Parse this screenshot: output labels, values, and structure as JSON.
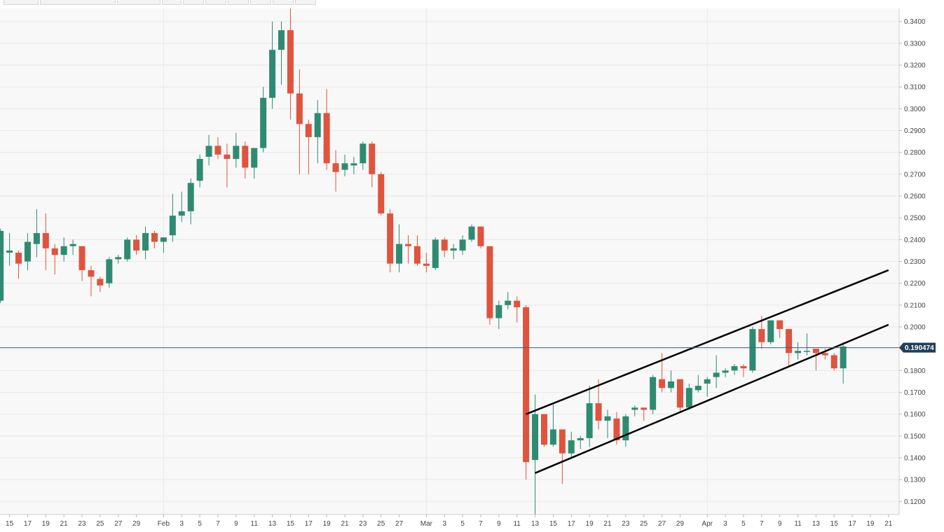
{
  "toolbar": {
    "buttons": [
      "time-range-button",
      "chart-type-button",
      "indicators-button",
      "draw-tool-button",
      "zoom-in-button",
      "zoom-out-button",
      "reset-button",
      "settings-button",
      "screenshot-button",
      "fullscreen-button"
    ]
  },
  "colors": {
    "up": "#2e8b72",
    "down": "#e0533d",
    "grid": "#e9e9e9",
    "price_line": "#41617f",
    "price_tag_bg": "#1f3f5b",
    "trend_line": "#000000"
  },
  "chart_data": {
    "type": "candlestick",
    "title": "",
    "xlabel": "",
    "ylabel": "",
    "ylim": [
      0.114,
      0.346
    ],
    "grid": true,
    "y_ticks": [
      "0.1200",
      "0.1300",
      "0.1400",
      "0.1500",
      "0.1600",
      "0.1700",
      "0.1800",
      "0.1900",
      "0.2000",
      "0.2100",
      "0.2200",
      "0.2300",
      "0.2400",
      "0.2500",
      "0.2600",
      "0.2700",
      "0.2800",
      "0.2900",
      "0.3000",
      "0.3100",
      "0.3200",
      "0.3300",
      "0.3400"
    ],
    "x_ticks": [
      {
        "day": 0,
        "label": "15"
      },
      {
        "day": 2,
        "label": "17"
      },
      {
        "day": 4,
        "label": "19"
      },
      {
        "day": 6,
        "label": "21"
      },
      {
        "day": 8,
        "label": "23"
      },
      {
        "day": 10,
        "label": "25"
      },
      {
        "day": 12,
        "label": "27"
      },
      {
        "day": 14,
        "label": "29"
      },
      {
        "day": 17,
        "label": "Feb"
      },
      {
        "day": 19,
        "label": "3"
      },
      {
        "day": 21,
        "label": "5"
      },
      {
        "day": 23,
        "label": "7"
      },
      {
        "day": 25,
        "label": "9"
      },
      {
        "day": 27,
        "label": "11"
      },
      {
        "day": 29,
        "label": "13"
      },
      {
        "day": 31,
        "label": "15"
      },
      {
        "day": 33,
        "label": "17"
      },
      {
        "day": 35,
        "label": "19"
      },
      {
        "day": 37,
        "label": "21"
      },
      {
        "day": 39,
        "label": "23"
      },
      {
        "day": 41,
        "label": "25"
      },
      {
        "day": 43,
        "label": "27"
      },
      {
        "day": 46,
        "label": "Mar"
      },
      {
        "day": 48,
        "label": "3"
      },
      {
        "day": 50,
        "label": "5"
      },
      {
        "day": 52,
        "label": "7"
      },
      {
        "day": 54,
        "label": "9"
      },
      {
        "day": 56,
        "label": "11"
      },
      {
        "day": 58,
        "label": "13"
      },
      {
        "day": 60,
        "label": "15"
      },
      {
        "day": 62,
        "label": "17"
      },
      {
        "day": 64,
        "label": "19"
      },
      {
        "day": 66,
        "label": "21"
      },
      {
        "day": 68,
        "label": "23"
      },
      {
        "day": 70,
        "label": "25"
      },
      {
        "day": 72,
        "label": "27"
      },
      {
        "day": 74,
        "label": "29"
      },
      {
        "day": 77,
        "label": "Apr"
      },
      {
        "day": 79,
        "label": "3"
      },
      {
        "day": 81,
        "label": "5"
      },
      {
        "day": 83,
        "label": "7"
      },
      {
        "day": 85,
        "label": "9"
      },
      {
        "day": 87,
        "label": "11"
      },
      {
        "day": 89,
        "label": "13"
      },
      {
        "day": 91,
        "label": "15"
      },
      {
        "day": 93,
        "label": "17"
      },
      {
        "day": 95,
        "label": "19"
      },
      {
        "day": 97,
        "label": "21"
      }
    ],
    "vertical_gridlines_at_days": [
      17,
      46,
      77
    ],
    "current_price": 0.190474,
    "current_price_label": "0.190474",
    "candles": [
      {
        "d": -1,
        "o": 0.212,
        "h": 0.245,
        "l": 0.211,
        "c": 0.244
      },
      {
        "d": 0,
        "o": 0.234,
        "h": 0.243,
        "l": 0.228,
        "c": 0.235
      },
      {
        "d": 1,
        "o": 0.234,
        "h": 0.235,
        "l": 0.222,
        "c": 0.229
      },
      {
        "d": 2,
        "o": 0.23,
        "h": 0.243,
        "l": 0.226,
        "c": 0.239
      },
      {
        "d": 3,
        "o": 0.238,
        "h": 0.254,
        "l": 0.232,
        "c": 0.243
      },
      {
        "d": 4,
        "o": 0.243,
        "h": 0.252,
        "l": 0.226,
        "c": 0.236
      },
      {
        "d": 5,
        "o": 0.236,
        "h": 0.238,
        "l": 0.224,
        "c": 0.233
      },
      {
        "d": 6,
        "o": 0.233,
        "h": 0.241,
        "l": 0.23,
        "c": 0.237
      },
      {
        "d": 7,
        "o": 0.237,
        "h": 0.24,
        "l": 0.233,
        "c": 0.238
      },
      {
        "d": 8,
        "o": 0.237,
        "h": 0.237,
        "l": 0.221,
        "c": 0.226
      },
      {
        "d": 9,
        "o": 0.226,
        "h": 0.228,
        "l": 0.214,
        "c": 0.223
      },
      {
        "d": 10,
        "o": 0.222,
        "h": 0.223,
        "l": 0.216,
        "c": 0.219
      },
      {
        "d": 11,
        "o": 0.22,
        "h": 0.232,
        "l": 0.218,
        "c": 0.231
      },
      {
        "d": 12,
        "o": 0.231,
        "h": 0.233,
        "l": 0.229,
        "c": 0.232
      },
      {
        "d": 13,
        "o": 0.231,
        "h": 0.241,
        "l": 0.23,
        "c": 0.24
      },
      {
        "d": 14,
        "o": 0.24,
        "h": 0.242,
        "l": 0.233,
        "c": 0.235
      },
      {
        "d": 15,
        "o": 0.235,
        "h": 0.246,
        "l": 0.231,
        "c": 0.243
      },
      {
        "d": 16,
        "o": 0.243,
        "h": 0.244,
        "l": 0.236,
        "c": 0.239
      },
      {
        "d": 17,
        "o": 0.239,
        "h": 0.241,
        "l": 0.234,
        "c": 0.241
      },
      {
        "d": 18,
        "o": 0.242,
        "h": 0.261,
        "l": 0.239,
        "c": 0.251
      },
      {
        "d": 19,
        "o": 0.251,
        "h": 0.262,
        "l": 0.248,
        "c": 0.253
      },
      {
        "d": 20,
        "o": 0.253,
        "h": 0.268,
        "l": 0.247,
        "c": 0.266
      },
      {
        "d": 21,
        "o": 0.267,
        "h": 0.279,
        "l": 0.264,
        "c": 0.277
      },
      {
        "d": 22,
        "o": 0.278,
        "h": 0.288,
        "l": 0.274,
        "c": 0.283
      },
      {
        "d": 23,
        "o": 0.283,
        "h": 0.287,
        "l": 0.277,
        "c": 0.279
      },
      {
        "d": 24,
        "o": 0.279,
        "h": 0.284,
        "l": 0.264,
        "c": 0.277
      },
      {
        "d": 25,
        "o": 0.277,
        "h": 0.289,
        "l": 0.273,
        "c": 0.283
      },
      {
        "d": 26,
        "o": 0.283,
        "h": 0.285,
        "l": 0.268,
        "c": 0.273
      },
      {
        "d": 27,
        "o": 0.273,
        "h": 0.282,
        "l": 0.268,
        "c": 0.282
      },
      {
        "d": 28,
        "o": 0.282,
        "h": 0.31,
        "l": 0.28,
        "c": 0.305
      },
      {
        "d": 29,
        "o": 0.305,
        "h": 0.34,
        "l": 0.3,
        "c": 0.327
      },
      {
        "d": 30,
        "o": 0.327,
        "h": 0.34,
        "l": 0.311,
        "c": 0.336
      },
      {
        "d": 31,
        "o": 0.336,
        "h": 0.346,
        "l": 0.295,
        "c": 0.307
      },
      {
        "d": 32,
        "o": 0.307,
        "h": 0.318,
        "l": 0.27,
        "c": 0.293
      },
      {
        "d": 33,
        "o": 0.293,
        "h": 0.295,
        "l": 0.27,
        "c": 0.287
      },
      {
        "d": 34,
        "o": 0.287,
        "h": 0.304,
        "l": 0.275,
        "c": 0.298
      },
      {
        "d": 35,
        "o": 0.298,
        "h": 0.309,
        "l": 0.272,
        "c": 0.275
      },
      {
        "d": 36,
        "o": 0.275,
        "h": 0.281,
        "l": 0.262,
        "c": 0.271
      },
      {
        "d": 37,
        "o": 0.272,
        "h": 0.279,
        "l": 0.269,
        "c": 0.275
      },
      {
        "d": 38,
        "o": 0.274,
        "h": 0.278,
        "l": 0.27,
        "c": 0.275
      },
      {
        "d": 39,
        "o": 0.275,
        "h": 0.285,
        "l": 0.272,
        "c": 0.284
      },
      {
        "d": 40,
        "o": 0.284,
        "h": 0.285,
        "l": 0.264,
        "c": 0.27
      },
      {
        "d": 41,
        "o": 0.27,
        "h": 0.271,
        "l": 0.251,
        "c": 0.252
      },
      {
        "d": 42,
        "o": 0.252,
        "h": 0.254,
        "l": 0.225,
        "c": 0.229
      },
      {
        "d": 43,
        "o": 0.229,
        "h": 0.247,
        "l": 0.225,
        "c": 0.238
      },
      {
        "d": 44,
        "o": 0.238,
        "h": 0.242,
        "l": 0.229,
        "c": 0.237
      },
      {
        "d": 45,
        "o": 0.237,
        "h": 0.242,
        "l": 0.228,
        "c": 0.229
      },
      {
        "d": 46,
        "o": 0.229,
        "h": 0.234,
        "l": 0.225,
        "c": 0.228
      },
      {
        "d": 47,
        "o": 0.227,
        "h": 0.241,
        "l": 0.226,
        "c": 0.24
      },
      {
        "d": 48,
        "o": 0.24,
        "h": 0.241,
        "l": 0.232,
        "c": 0.235
      },
      {
        "d": 49,
        "o": 0.235,
        "h": 0.238,
        "l": 0.231,
        "c": 0.236
      },
      {
        "d": 50,
        "o": 0.235,
        "h": 0.242,
        "l": 0.233,
        "c": 0.24
      },
      {
        "d": 51,
        "o": 0.24,
        "h": 0.247,
        "l": 0.239,
        "c": 0.246
      },
      {
        "d": 52,
        "o": 0.246,
        "h": 0.246,
        "l": 0.236,
        "c": 0.237
      },
      {
        "d": 53,
        "o": 0.237,
        "h": 0.237,
        "l": 0.201,
        "c": 0.204
      },
      {
        "d": 54,
        "o": 0.204,
        "h": 0.212,
        "l": 0.199,
        "c": 0.21
      },
      {
        "d": 55,
        "o": 0.21,
        "h": 0.216,
        "l": 0.208,
        "c": 0.212
      },
      {
        "d": 56,
        "o": 0.212,
        "h": 0.214,
        "l": 0.202,
        "c": 0.209
      },
      {
        "d": 57,
        "o": 0.209,
        "h": 0.21,
        "l": 0.13,
        "c": 0.138
      },
      {
        "d": 58,
        "o": 0.139,
        "h": 0.169,
        "l": 0.114,
        "c": 0.16
      },
      {
        "d": 59,
        "o": 0.16,
        "h": 0.16,
        "l": 0.145,
        "c": 0.146
      },
      {
        "d": 60,
        "o": 0.146,
        "h": 0.165,
        "l": 0.145,
        "c": 0.153
      },
      {
        "d": 61,
        "o": 0.153,
        "h": 0.153,
        "l": 0.128,
        "c": 0.142
      },
      {
        "d": 62,
        "o": 0.142,
        "h": 0.152,
        "l": 0.14,
        "c": 0.148
      },
      {
        "d": 63,
        "o": 0.148,
        "h": 0.15,
        "l": 0.144,
        "c": 0.149
      },
      {
        "d": 64,
        "o": 0.149,
        "h": 0.173,
        "l": 0.145,
        "c": 0.165
      },
      {
        "d": 65,
        "o": 0.165,
        "h": 0.176,
        "l": 0.153,
        "c": 0.157
      },
      {
        "d": 66,
        "o": 0.157,
        "h": 0.162,
        "l": 0.149,
        "c": 0.159
      },
      {
        "d": 67,
        "o": 0.158,
        "h": 0.161,
        "l": 0.146,
        "c": 0.148
      },
      {
        "d": 68,
        "o": 0.148,
        "h": 0.16,
        "l": 0.145,
        "c": 0.159
      },
      {
        "d": 69,
        "o": 0.162,
        "h": 0.164,
        "l": 0.159,
        "c": 0.163
      },
      {
        "d": 70,
        "o": 0.163,
        "h": 0.163,
        "l": 0.157,
        "c": 0.162
      },
      {
        "d": 71,
        "o": 0.162,
        "h": 0.178,
        "l": 0.16,
        "c": 0.177
      },
      {
        "d": 72,
        "o": 0.176,
        "h": 0.188,
        "l": 0.17,
        "c": 0.172
      },
      {
        "d": 73,
        "o": 0.172,
        "h": 0.18,
        "l": 0.17,
        "c": 0.175
      },
      {
        "d": 74,
        "o": 0.176,
        "h": 0.176,
        "l": 0.161,
        "c": 0.163
      },
      {
        "d": 75,
        "o": 0.163,
        "h": 0.174,
        "l": 0.162,
        "c": 0.172
      },
      {
        "d": 76,
        "o": 0.171,
        "h": 0.178,
        "l": 0.17,
        "c": 0.173
      },
      {
        "d": 77,
        "o": 0.174,
        "h": 0.177,
        "l": 0.168,
        "c": 0.176
      },
      {
        "d": 78,
        "o": 0.177,
        "h": 0.187,
        "l": 0.172,
        "c": 0.179
      },
      {
        "d": 79,
        "o": 0.179,
        "h": 0.181,
        "l": 0.177,
        "c": 0.18
      },
      {
        "d": 80,
        "o": 0.18,
        "h": 0.183,
        "l": 0.178,
        "c": 0.182
      },
      {
        "d": 81,
        "o": 0.182,
        "h": 0.183,
        "l": 0.177,
        "c": 0.181
      },
      {
        "d": 82,
        "o": 0.18,
        "h": 0.2,
        "l": 0.179,
        "c": 0.199
      },
      {
        "d": 83,
        "o": 0.199,
        "h": 0.205,
        "l": 0.19,
        "c": 0.193
      },
      {
        "d": 84,
        "o": 0.193,
        "h": 0.203,
        "l": 0.192,
        "c": 0.203
      },
      {
        "d": 85,
        "o": 0.203,
        "h": 0.203,
        "l": 0.195,
        "c": 0.199
      },
      {
        "d": 86,
        "o": 0.199,
        "h": 0.199,
        "l": 0.182,
        "c": 0.188
      },
      {
        "d": 87,
        "o": 0.188,
        "h": 0.193,
        "l": 0.185,
        "c": 0.189
      },
      {
        "d": 88,
        "o": 0.189,
        "h": 0.197,
        "l": 0.187,
        "c": 0.189
      },
      {
        "d": 89,
        "o": 0.19,
        "h": 0.19,
        "l": 0.18,
        "c": 0.188
      },
      {
        "d": 90,
        "o": 0.188,
        "h": 0.19,
        "l": 0.185,
        "c": 0.187
      },
      {
        "d": 91,
        "o": 0.187,
        "h": 0.188,
        "l": 0.18,
        "c": 0.181
      },
      {
        "d": 92,
        "o": 0.181,
        "h": 0.193,
        "l": 0.174,
        "c": 0.191
      }
    ],
    "trendlines": [
      {
        "name": "upper-channel",
        "from": {
          "d": 57,
          "y": 0.16
        },
        "to": {
          "d": 97,
          "y": 0.226
        }
      },
      {
        "name": "lower-channel",
        "from": {
          "d": 58,
          "y": 0.133
        },
        "to": {
          "d": 97,
          "y": 0.201
        }
      }
    ]
  }
}
